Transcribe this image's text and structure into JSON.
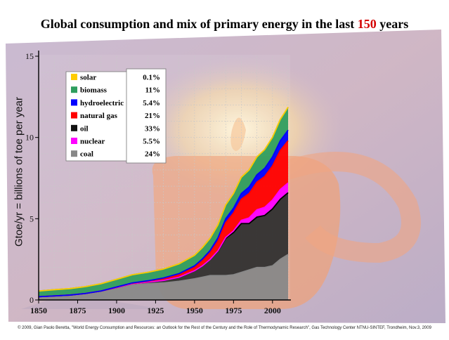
{
  "slide": {
    "title_pre": "Global consumption and mix of primary energy in the last ",
    "title_highlight": "150",
    "title_post": " years",
    "footer": "© 2009, Gian Paolo Beretta, \"World Energy Consumption and Resources: an Outlook for the Rest of the Century and the Role of Thermodynamic Research\", Gas Technology Center NTNU-SINTEF, Trondheim, Nov.3, 2009"
  },
  "chart_data": {
    "type": "area",
    "title": "Global consumption and mix of primary energy in the last 150 years",
    "ylabel": "Gtoe/yr = billions of toe per year",
    "xlabel": "",
    "xlim": [
      1850,
      2010
    ],
    "ylim": [
      0,
      15
    ],
    "x_ticks": [
      1850,
      1875,
      1900,
      1925,
      1950,
      1975,
      2000
    ],
    "y_ticks": [
      0,
      5,
      10,
      15
    ],
    "grid": true,
    "x": [
      1850,
      1860,
      1870,
      1880,
      1890,
      1900,
      1910,
      1920,
      1930,
      1940,
      1950,
      1955,
      1960,
      1965,
      1970,
      1975,
      1980,
      1985,
      1990,
      1995,
      2000,
      2005,
      2010
    ],
    "series": [
      {
        "name": "coal",
        "color": "#888888",
        "values": [
          0.2,
          0.25,
          0.3,
          0.4,
          0.55,
          0.75,
          0.95,
          1.0,
          1.05,
          1.15,
          1.3,
          1.4,
          1.5,
          1.5,
          1.5,
          1.55,
          1.7,
          1.85,
          2.0,
          2.0,
          2.1,
          2.5,
          2.8
        ]
      },
      {
        "name": "oil",
        "color": "#303030",
        "values": [
          0,
          0,
          0,
          0,
          0,
          0.02,
          0.05,
          0.1,
          0.15,
          0.25,
          0.5,
          0.7,
          1.0,
          1.5,
          2.3,
          2.6,
          3.0,
          2.85,
          3.1,
          3.2,
          3.5,
          3.7,
          3.8
        ]
      },
      {
        "name": "nuclear",
        "color": "#ff00ff",
        "values": [
          0,
          0,
          0,
          0,
          0,
          0,
          0,
          0,
          0,
          0,
          0,
          0,
          0,
          0.02,
          0.05,
          0.1,
          0.2,
          0.35,
          0.45,
          0.5,
          0.55,
          0.6,
          0.6
        ]
      },
      {
        "name": "natural gas",
        "color": "#ff0000",
        "values": [
          0,
          0,
          0,
          0,
          0,
          0.02,
          0.03,
          0.05,
          0.1,
          0.15,
          0.2,
          0.3,
          0.4,
          0.6,
          0.9,
          1.1,
          1.3,
          1.5,
          1.7,
          1.9,
          2.1,
          2.4,
          2.6
        ]
      },
      {
        "name": "hydroelectric",
        "color": "#0000ff",
        "values": [
          0,
          0,
          0,
          0,
          0,
          0.01,
          0.02,
          0.03,
          0.05,
          0.07,
          0.1,
          0.12,
          0.15,
          0.2,
          0.25,
          0.3,
          0.35,
          0.4,
          0.45,
          0.5,
          0.55,
          0.6,
          0.65
        ]
      },
      {
        "name": "biomass",
        "color": "#2e9e5e",
        "values": [
          0.35,
          0.38,
          0.4,
          0.42,
          0.45,
          0.47,
          0.5,
          0.52,
          0.55,
          0.6,
          0.65,
          0.7,
          0.75,
          0.8,
          0.85,
          0.9,
          1.0,
          1.05,
          1.1,
          1.15,
          1.2,
          1.3,
          1.4
        ]
      },
      {
        "name": "solar",
        "color": "#ffcc00",
        "values": [
          0,
          0,
          0,
          0,
          0,
          0,
          0,
          0,
          0,
          0,
          0,
          0,
          0,
          0,
          0,
          0,
          0,
          0,
          0.005,
          0.005,
          0.01,
          0.01,
          0.015
        ]
      }
    ],
    "legend": [
      {
        "name": "solar",
        "share": "0.1%",
        "color": "#ffcc00"
      },
      {
        "name": "biomass",
        "share": "11%",
        "color": "#2e9e5e"
      },
      {
        "name": "hydroelectric",
        "share": "5.4%",
        "color": "#0000ff"
      },
      {
        "name": "natural gas",
        "share": "21%",
        "color": "#ff0000"
      },
      {
        "name": "oil",
        "share": "33%",
        "color": "#111111"
      },
      {
        "name": "nuclear",
        "share": "5.5%",
        "color": "#ff00ff"
      },
      {
        "name": "coal",
        "share": "24%",
        "color": "#888888"
      }
    ],
    "legend_placement": "top-left",
    "colors": {
      "background_paint": "#c6b4cc",
      "candle_glow": "#f2a778",
      "grid": "#c8c8c8"
    }
  }
}
